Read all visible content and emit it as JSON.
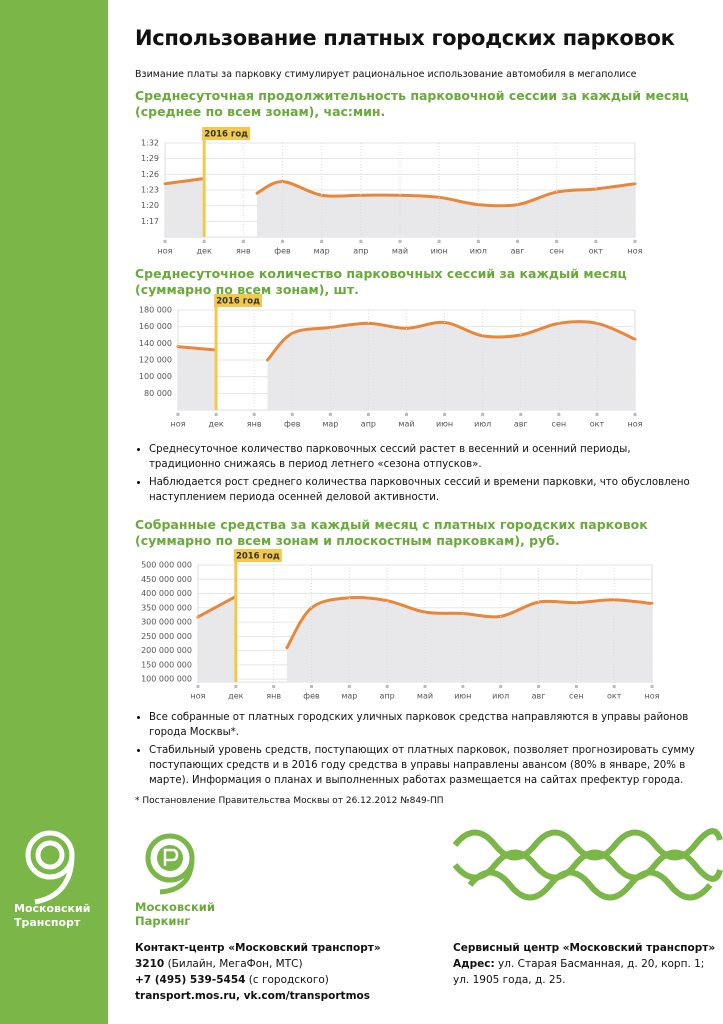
{
  "title": "Использование платных городских парковок",
  "subtitle": "Взимание платы за парковку стимулирует рациональное использование автомобиля в мегаполисе",
  "chart_data": [
    {
      "type": "line",
      "title": "Среднесуточная продолжительность парковочной сессии за каждый месяц\n(среднее по всем зонам), час:мин.",
      "annotation": "2016 год",
      "categories": [
        "ноя",
        "дек",
        "янв",
        "фев",
        "мар",
        "апр",
        "май",
        "июн",
        "июл",
        "авг",
        "сен",
        "окт",
        "ноя"
      ],
      "values": [
        84.2,
        85.2,
        82.4,
        84.6,
        82,
        82,
        82,
        81.6,
        80.2,
        80.2,
        82.6,
        83.2,
        84.2
      ],
      "color": "#e8873a",
      "ylim": [
        74,
        92
      ],
      "yticks": [
        {
          "value": 77,
          "label": "1:17"
        },
        {
          "value": 80,
          "label": "1:20"
        },
        {
          "value": 83,
          "label": "1:23"
        },
        {
          "value": 86,
          "label": "1:26"
        },
        {
          "value": 89,
          "label": "1:29"
        },
        {
          "value": 92,
          "label": "1:32"
        }
      ]
    },
    {
      "type": "line",
      "title": "Среднесуточное количество парковочных сессий за каждый месяц\n(суммарно по всем зонам), шт.",
      "annotation": "2016 год",
      "categories": [
        "ноя",
        "дек",
        "янв",
        "фев",
        "мар",
        "апр",
        "май",
        "июн",
        "июл",
        "авг",
        "сен",
        "окт",
        "ноя"
      ],
      "values": [
        136000,
        132000,
        120000,
        152000,
        159000,
        164000,
        158000,
        165000,
        149000,
        150000,
        164000,
        164000,
        145000
      ],
      "color": "#e8873a",
      "ylim": [
        60000,
        180000
      ],
      "yticks": [
        {
          "value": 80000,
          "label": "80 000"
        },
        {
          "value": 100000,
          "label": "100 000"
        },
        {
          "value": 120000,
          "label": "120 000"
        },
        {
          "value": 140000,
          "label": "140 000"
        },
        {
          "value": 160000,
          "label": "160 000"
        },
        {
          "value": 180000,
          "label": "180 000"
        }
      ]
    },
    {
      "type": "line",
      "title": "Собранные средства за каждый месяц с платных городских парковок\n(суммарно по всем зонам и плоскостным парковкам), руб.",
      "annotation": "2016 год",
      "categories": [
        "ноя",
        "дек",
        "янв",
        "фев",
        "мар",
        "апр",
        "май",
        "июн",
        "июл",
        "авг",
        "сен",
        "окт",
        "ноя"
      ],
      "values": [
        318000000,
        390000000,
        210000000,
        350000000,
        385000000,
        375000000,
        335000000,
        330000000,
        320000000,
        370000000,
        368000000,
        378000000,
        365000000
      ],
      "color": "#e8873a",
      "ylim": [
        90000000,
        500000000
      ],
      "yticks": [
        {
          "value": 100000000,
          "label": "100 000 000"
        },
        {
          "value": 150000000,
          "label": "150 000 000"
        },
        {
          "value": 200000000,
          "label": "200 000 000"
        },
        {
          "value": 250000000,
          "label": "250 000 000"
        },
        {
          "value": 300000000,
          "label": "300 000 000"
        },
        {
          "value": 350000000,
          "label": "350 000 000"
        },
        {
          "value": 400000000,
          "label": "400 000 000"
        },
        {
          "value": 450000000,
          "label": "450 000 000"
        },
        {
          "value": 500000000,
          "label": "500 000 000"
        }
      ]
    }
  ],
  "bullets1": [
    "Среднесуточное количество парковочных сессий растет в весенний и осенний периоды, традиционно снижаясь в период летнего «сезона отпусков».",
    "Наблюдается рост среднего количества парковочных сессий и времени парковки, что обусловлено наступлением периода осенней деловой активности."
  ],
  "bullets2": [
    "Все собранные от платных городских уличных парковок средства направляются в управы районов города Москвы*.",
    "Стабильный уровень средств, поступающих от платных парковок, позволяет прогнозировать сумму поступающих средств и в 2016 году средства в управы направлены авансом (80% в январе, 20% в марте). Информация о планах и выполненных работах размещается на сайтах префектур города."
  ],
  "footnote": "* Постановление Правительства Москвы от 26.12.2012 №849-ПП",
  "logo_transport": "Московский\nТранспорт",
  "logo_parking": "Московский\nПаркинг",
  "contact": {
    "title": "Контакт-центр «Московский транспорт»",
    "short": "3210",
    "short_note": "(Билайн, МегаФон, МТС)",
    "phone": "+7 (495) 539-5454",
    "phone_note": "(с городского)",
    "web": "transport.mos.ru, vk.com/transportmos"
  },
  "service": {
    "title": "Сервисный центр «Московский транспорт»",
    "label": "Адрес:",
    "address1": "ул. Старая Басманная, д. 20, корп. 1;",
    "address2": "ул. 1905 года, д. 25."
  }
}
